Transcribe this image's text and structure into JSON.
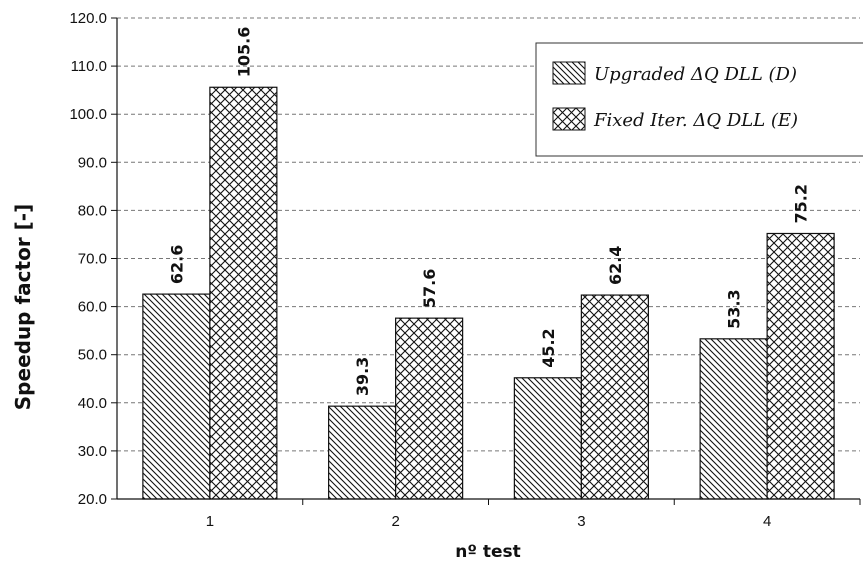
{
  "chart_data": {
    "type": "bar",
    "title": "",
    "xlabel": "nº test",
    "ylabel": "Speedup factor [-]",
    "categories": [
      "1",
      "2",
      "3",
      "4"
    ],
    "series": [
      {
        "name": "Upgraded ΔQ DLL (D)",
        "pattern": "diagonal-hatch",
        "values": [
          62.6,
          39.3,
          45.2,
          53.3
        ]
      },
      {
        "name": "Fixed Iter. ΔQ DLL (E)",
        "pattern": "cross-hatch",
        "values": [
          105.6,
          57.6,
          62.4,
          75.2
        ]
      }
    ],
    "ylim": [
      20.0,
      120.0
    ],
    "ytick_step": 10.0,
    "grid": true,
    "legend": "top-right"
  }
}
